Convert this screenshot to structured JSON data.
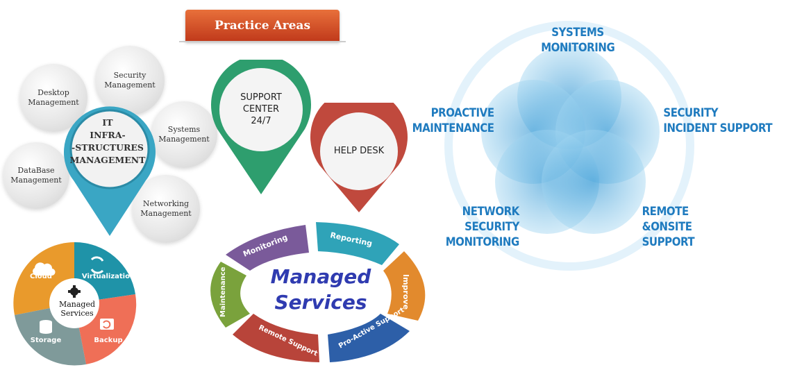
{
  "banner": {
    "title": "Practice Areas"
  },
  "it_group": {
    "center_label_lines": [
      "IT",
      "INFRA-",
      "-STRUCTURES",
      "MANAGEMENT"
    ],
    "bubbles": [
      {
        "label": "Desktop Management"
      },
      {
        "label": "Security Management"
      },
      {
        "label": "Systems Management"
      },
      {
        "label": "DataBase Management"
      },
      {
        "label": "Networking Management"
      }
    ],
    "colors": {
      "pin": "#3aa6c4"
    }
  },
  "pins": [
    {
      "label_lines": [
        "SUPPORT",
        "CENTER",
        "24/7"
      ],
      "color": "#2e9e6e"
    },
    {
      "label_lines": [
        "HELP DESK"
      ],
      "color": "#c0493d"
    }
  ],
  "managed_services": {
    "title_lines": [
      "Managed",
      "Services"
    ],
    "segments": [
      {
        "label": "Monitoring",
        "color": "#7a5a9a"
      },
      {
        "label": "Reporting",
        "color": "#2fa3b8"
      },
      {
        "label": "Improve",
        "color": "#e28a2d"
      },
      {
        "label": "Pro-Active Support",
        "color": "#2d5fa8"
      },
      {
        "label": "Remote Support",
        "color": "#b8443a"
      },
      {
        "label": "Maintenance",
        "color": "#7aa23c"
      }
    ]
  },
  "venn": {
    "labels": [
      {
        "lines": [
          "SYSTEMS",
          "MONITORING"
        ]
      },
      {
        "lines": [
          "PROACTIVE",
          "MAINTENANCE"
        ]
      },
      {
        "lines": [
          "SECURITY",
          "INCIDENT SUPPORT"
        ]
      },
      {
        "lines": [
          "NETWORK",
          "SECURITY",
          "MONITORING"
        ]
      },
      {
        "lines": [
          "REMOTE",
          "&ONSITE",
          "SUPPORT"
        ]
      }
    ],
    "color": "#1f7bbf"
  },
  "pie": {
    "center_lines": [
      "Managed",
      "Services"
    ],
    "segments": [
      {
        "label": "Cloud",
        "color": "#e99a2c"
      },
      {
        "label": "Virtualization",
        "color": "#1f93a8"
      },
      {
        "label": "Backup",
        "color": "#ef6f57"
      },
      {
        "label": "Storage",
        "color": "#7f9a9a"
      }
    ]
  }
}
